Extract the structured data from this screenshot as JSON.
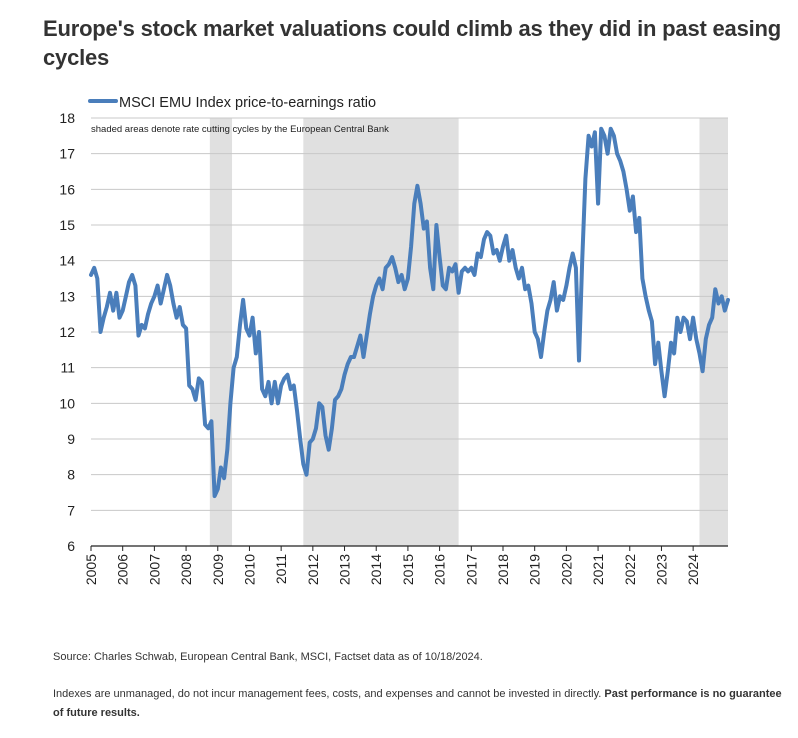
{
  "title": "Europe's stock market valuations could climb as they did in past easing cycles",
  "source": "Source: Charles Schwab, European Central Bank, MSCI, Factset data as of 10/18/2024.",
  "disclaimer": {
    "text": "Indexes are unmanaged, do not incur management fees, costs, and expenses and cannot be invested in directly. ",
    "bold": "Past performance is no guarantee of future results."
  },
  "chart_data": {
    "type": "line",
    "legend": "MSCI EMU Index price-to-earnings ratio",
    "annotation": "shaded areas denote rate cutting cycles by the European Central Bank",
    "line_color": "#4a7ebb",
    "shade_color": "#e0e0e0",
    "ylim": [
      6,
      18
    ],
    "yticks": [
      6,
      7,
      8,
      9,
      10,
      11,
      12,
      13,
      14,
      15,
      16,
      17,
      18
    ],
    "xlim": [
      2005,
      2025.1
    ],
    "xticks": [
      "2005",
      "2006",
      "2007",
      "2008",
      "2009",
      "2010",
      "2011",
      "2012",
      "2013",
      "2014",
      "2015",
      "2016",
      "2017",
      "2018",
      "2019",
      "2020",
      "2021",
      "2022",
      "2023",
      "2024"
    ],
    "shaded_periods": [
      [
        2008.75,
        2009.45
      ],
      [
        2011.7,
        2016.6
      ],
      [
        2024.2,
        2025.1
      ]
    ],
    "series": [
      {
        "points": [
          [
            2005.0,
            13.6
          ],
          [
            2005.1,
            13.8
          ],
          [
            2005.2,
            13.5
          ],
          [
            2005.3,
            12.0
          ],
          [
            2005.4,
            12.4
          ],
          [
            2005.5,
            12.7
          ],
          [
            2005.6,
            13.1
          ],
          [
            2005.7,
            12.6
          ],
          [
            2005.8,
            13.1
          ],
          [
            2005.9,
            12.4
          ],
          [
            2006.0,
            12.6
          ],
          [
            2006.1,
            13.0
          ],
          [
            2006.2,
            13.4
          ],
          [
            2006.3,
            13.6
          ],
          [
            2006.4,
            13.3
          ],
          [
            2006.5,
            11.9
          ],
          [
            2006.6,
            12.2
          ],
          [
            2006.7,
            12.1
          ],
          [
            2006.8,
            12.5
          ],
          [
            2006.9,
            12.8
          ],
          [
            2007.0,
            13.0
          ],
          [
            2007.1,
            13.3
          ],
          [
            2007.2,
            12.8
          ],
          [
            2007.3,
            13.2
          ],
          [
            2007.4,
            13.6
          ],
          [
            2007.5,
            13.3
          ],
          [
            2007.6,
            12.8
          ],
          [
            2007.7,
            12.4
          ],
          [
            2007.8,
            12.7
          ],
          [
            2007.9,
            12.2
          ],
          [
            2008.0,
            12.1
          ],
          [
            2008.1,
            10.5
          ],
          [
            2008.2,
            10.4
          ],
          [
            2008.3,
            10.1
          ],
          [
            2008.4,
            10.7
          ],
          [
            2008.5,
            10.6
          ],
          [
            2008.6,
            9.4
          ],
          [
            2008.7,
            9.3
          ],
          [
            2008.8,
            9.5
          ],
          [
            2008.9,
            7.4
          ],
          [
            2009.0,
            7.6
          ],
          [
            2009.1,
            8.2
          ],
          [
            2009.2,
            7.9
          ],
          [
            2009.3,
            8.7
          ],
          [
            2009.4,
            10.0
          ],
          [
            2009.5,
            11.0
          ],
          [
            2009.6,
            11.3
          ],
          [
            2009.7,
            12.2
          ],
          [
            2009.8,
            12.9
          ],
          [
            2009.9,
            12.1
          ],
          [
            2010.0,
            11.9
          ],
          [
            2010.1,
            12.4
          ],
          [
            2010.2,
            11.4
          ],
          [
            2010.3,
            12.0
          ],
          [
            2010.4,
            10.4
          ],
          [
            2010.5,
            10.2
          ],
          [
            2010.6,
            10.6
          ],
          [
            2010.7,
            10.0
          ],
          [
            2010.8,
            10.6
          ],
          [
            2010.9,
            10.0
          ],
          [
            2011.0,
            10.5
          ],
          [
            2011.1,
            10.7
          ],
          [
            2011.2,
            10.8
          ],
          [
            2011.3,
            10.4
          ],
          [
            2011.4,
            10.5
          ],
          [
            2011.5,
            9.8
          ],
          [
            2011.6,
            9.0
          ],
          [
            2011.7,
            8.3
          ],
          [
            2011.8,
            8.0
          ],
          [
            2011.9,
            8.9
          ],
          [
            2012.0,
            9.0
          ],
          [
            2012.1,
            9.3
          ],
          [
            2012.2,
            10.0
          ],
          [
            2012.3,
            9.9
          ],
          [
            2012.4,
            9.1
          ],
          [
            2012.5,
            8.7
          ],
          [
            2012.6,
            9.3
          ],
          [
            2012.7,
            10.1
          ],
          [
            2012.8,
            10.2
          ],
          [
            2012.9,
            10.4
          ],
          [
            2013.0,
            10.8
          ],
          [
            2013.1,
            11.1
          ],
          [
            2013.2,
            11.3
          ],
          [
            2013.3,
            11.3
          ],
          [
            2013.4,
            11.6
          ],
          [
            2013.5,
            11.9
          ],
          [
            2013.6,
            11.3
          ],
          [
            2013.7,
            11.9
          ],
          [
            2013.8,
            12.5
          ],
          [
            2013.9,
            13.0
          ],
          [
            2014.0,
            13.3
          ],
          [
            2014.1,
            13.5
          ],
          [
            2014.2,
            13.2
          ],
          [
            2014.3,
            13.8
          ],
          [
            2014.4,
            13.9
          ],
          [
            2014.5,
            14.1
          ],
          [
            2014.6,
            13.8
          ],
          [
            2014.7,
            13.4
          ],
          [
            2014.8,
            13.6
          ],
          [
            2014.9,
            13.2
          ],
          [
            2015.0,
            13.5
          ],
          [
            2015.1,
            14.4
          ],
          [
            2015.2,
            15.6
          ],
          [
            2015.3,
            16.1
          ],
          [
            2015.4,
            15.6
          ],
          [
            2015.5,
            14.9
          ],
          [
            2015.6,
            15.1
          ],
          [
            2015.7,
            13.8
          ],
          [
            2015.8,
            13.2
          ],
          [
            2015.9,
            15.0
          ],
          [
            2016.0,
            14.1
          ],
          [
            2016.1,
            13.3
          ],
          [
            2016.2,
            13.2
          ],
          [
            2016.3,
            13.8
          ],
          [
            2016.4,
            13.7
          ],
          [
            2016.5,
            13.9
          ],
          [
            2016.6,
            13.1
          ],
          [
            2016.7,
            13.7
          ],
          [
            2016.8,
            13.8
          ],
          [
            2016.9,
            13.7
          ],
          [
            2017.0,
            13.8
          ],
          [
            2017.1,
            13.6
          ],
          [
            2017.2,
            14.2
          ],
          [
            2017.3,
            14.1
          ],
          [
            2017.4,
            14.6
          ],
          [
            2017.5,
            14.8
          ],
          [
            2017.6,
            14.7
          ],
          [
            2017.7,
            14.2
          ],
          [
            2017.8,
            14.3
          ],
          [
            2017.9,
            14.0
          ],
          [
            2018.0,
            14.4
          ],
          [
            2018.1,
            14.7
          ],
          [
            2018.2,
            14.0
          ],
          [
            2018.3,
            14.3
          ],
          [
            2018.4,
            13.8
          ],
          [
            2018.5,
            13.5
          ],
          [
            2018.6,
            13.8
          ],
          [
            2018.7,
            13.2
          ],
          [
            2018.8,
            13.3
          ],
          [
            2018.9,
            12.8
          ],
          [
            2019.0,
            12.0
          ],
          [
            2019.1,
            11.8
          ],
          [
            2019.2,
            11.3
          ],
          [
            2019.3,
            12.0
          ],
          [
            2019.4,
            12.6
          ],
          [
            2019.5,
            12.9
          ],
          [
            2019.6,
            13.4
          ],
          [
            2019.7,
            12.6
          ],
          [
            2019.8,
            13.0
          ],
          [
            2019.9,
            12.9
          ],
          [
            2020.0,
            13.3
          ],
          [
            2020.1,
            13.8
          ],
          [
            2020.2,
            14.2
          ],
          [
            2020.3,
            13.8
          ],
          [
            2020.4,
            11.2
          ],
          [
            2020.5,
            14.0
          ],
          [
            2020.6,
            16.3
          ],
          [
            2020.7,
            17.5
          ],
          [
            2020.8,
            17.2
          ],
          [
            2020.9,
            17.6
          ],
          [
            2021.0,
            15.6
          ],
          [
            2021.1,
            17.7
          ],
          [
            2021.2,
            17.5
          ],
          [
            2021.3,
            17.0
          ],
          [
            2021.4,
            17.7
          ],
          [
            2021.5,
            17.5
          ],
          [
            2021.6,
            17.0
          ],
          [
            2021.7,
            16.8
          ],
          [
            2021.8,
            16.5
          ],
          [
            2021.9,
            16.0
          ],
          [
            2022.0,
            15.4
          ],
          [
            2022.1,
            15.8
          ],
          [
            2022.2,
            14.8
          ],
          [
            2022.3,
            15.2
          ],
          [
            2022.4,
            13.5
          ],
          [
            2022.5,
            13.0
          ],
          [
            2022.6,
            12.6
          ],
          [
            2022.7,
            12.3
          ],
          [
            2022.8,
            11.1
          ],
          [
            2022.9,
            11.7
          ],
          [
            2023.0,
            10.9
          ],
          [
            2023.1,
            10.2
          ],
          [
            2023.2,
            10.9
          ],
          [
            2023.3,
            11.7
          ],
          [
            2023.4,
            11.4
          ],
          [
            2023.5,
            12.4
          ],
          [
            2023.6,
            12.0
          ],
          [
            2023.7,
            12.4
          ],
          [
            2023.8,
            12.3
          ],
          [
            2023.9,
            11.8
          ],
          [
            2024.0,
            12.4
          ],
          [
            2024.1,
            11.8
          ],
          [
            2024.2,
            11.4
          ],
          [
            2024.3,
            10.9
          ],
          [
            2024.4,
            11.8
          ],
          [
            2024.5,
            12.2
          ],
          [
            2024.6,
            12.4
          ],
          [
            2024.7,
            13.2
          ],
          [
            2024.8,
            12.8
          ],
          [
            2024.9,
            13.0
          ],
          [
            2025.0,
            12.6
          ],
          [
            2025.1,
            12.9
          ]
        ]
      }
    ]
  }
}
